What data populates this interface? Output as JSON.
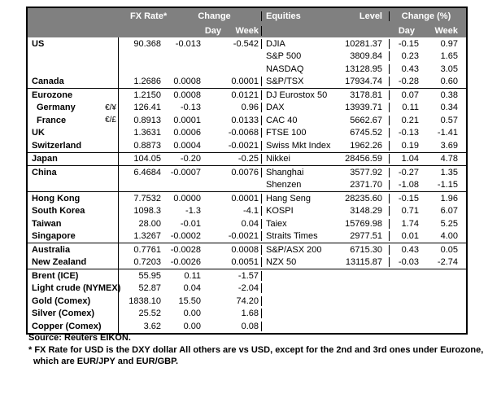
{
  "colors": {
    "header_bg": "#808080",
    "header_text": "#ffffff",
    "border": "#000000",
    "text": "#000000",
    "background": "#ffffff"
  },
  "header": {
    "fx_rate": "FX Rate*",
    "change": "Change",
    "day": "Day",
    "week": "Week",
    "equities": "Equities",
    "level": "Level",
    "change_pct": "Change (%)",
    "day2": "Day",
    "week2": "Week"
  },
  "rows": [
    {
      "name": "US",
      "pair": "",
      "fx": "90.368",
      "day": "-0.013",
      "week": "-0.542",
      "eq": "DJIA",
      "level": "10281.37",
      "eday": "-0.15",
      "eweek": "0.97",
      "sep": false,
      "indent": false,
      "rightEmpty": false
    },
    {
      "name": "",
      "pair": "",
      "fx": "",
      "day": "",
      "week": "",
      "eq": "S&P 500",
      "level": "3809.84",
      "eday": "0.23",
      "eweek": "1.65",
      "sep": false,
      "indent": false,
      "rightEmpty": false
    },
    {
      "name": "",
      "pair": "",
      "fx": "",
      "day": "",
      "week": "",
      "eq": "NASDAQ",
      "level": "13128.95",
      "eday": "0.43",
      "eweek": "3.05",
      "sep": false,
      "indent": false,
      "rightEmpty": false
    },
    {
      "name": "Canada",
      "pair": "",
      "fx": "1.2686",
      "day": "0.0008",
      "week": "0.0001",
      "eq": "S&P/TSX",
      "level": "17934.74",
      "eday": "-0.28",
      "eweek": "0.60",
      "sep": false,
      "indent": false,
      "rightEmpty": false
    },
    {
      "name": "Eurozone",
      "pair": "",
      "fx": "1.2150",
      "day": "0.0008",
      "week": "0.0121",
      "eq": "DJ Eurostox 50",
      "level": "3178.81",
      "eday": "0.07",
      "eweek": "0.38",
      "sep": true,
      "indent": false,
      "rightEmpty": false
    },
    {
      "name": "Germany",
      "pair": "€/¥",
      "fx": "126.41",
      "day": "-0.13",
      "week": "0.96",
      "eq": "DAX",
      "level": "13939.71",
      "eday": "0.11",
      "eweek": "0.34",
      "sep": false,
      "indent": true,
      "rightEmpty": false
    },
    {
      "name": "France",
      "pair": "€/£",
      "fx": "0.8913",
      "day": "0.0001",
      "week": "0.0133",
      "eq": "CAC 40",
      "level": "5662.67",
      "eday": "0.21",
      "eweek": "0.57",
      "sep": false,
      "indent": true,
      "rightEmpty": false
    },
    {
      "name": "UK",
      "pair": "",
      "fx": "1.3631",
      "day": "0.0006",
      "week": "-0.0068",
      "eq": "FTSE 100",
      "level": "6745.52",
      "eday": "-0.13",
      "eweek": "-1.41",
      "sep": false,
      "indent": false,
      "rightEmpty": false
    },
    {
      "name": "Switzerland",
      "pair": "",
      "fx": "0.8873",
      "day": "0.0004",
      "week": "-0.0021",
      "eq": "Swiss Mkt Index",
      "level": "1962.26",
      "eday": "0.19",
      "eweek": "3.69",
      "sep": false,
      "indent": false,
      "rightEmpty": false
    },
    {
      "name": "Japan",
      "pair": "",
      "fx": "104.05",
      "day": "-0.20",
      "week": "-0.25",
      "eq": "Nikkei",
      "level": "28456.59",
      "eday": "1.04",
      "eweek": "4.78",
      "sep": true,
      "indent": false,
      "rightEmpty": false
    },
    {
      "name": "China",
      "pair": "",
      "fx": "6.4684",
      "day": "-0.0007",
      "week": "0.0076",
      "eq": "Shanghai",
      "level": "3577.92",
      "eday": "-0.27",
      "eweek": "1.35",
      "sep": true,
      "indent": false,
      "rightEmpty": false
    },
    {
      "name": "",
      "pair": "",
      "fx": "",
      "day": "",
      "week": "",
      "eq": "Shenzen",
      "level": "2371.70",
      "eday": "-1.08",
      "eweek": "-1.15",
      "sep": false,
      "indent": false,
      "rightEmpty": false
    },
    {
      "name": "Hong Kong",
      "pair": "",
      "fx": "7.7532",
      "day": "0.0000",
      "week": "0.0001",
      "eq": "Hang Seng",
      "level": "28235.60",
      "eday": "-0.15",
      "eweek": "1.96",
      "sep": true,
      "indent": false,
      "rightEmpty": false
    },
    {
      "name": "South Korea",
      "pair": "",
      "fx": "1098.3",
      "day": "-1.3",
      "week": "-4.1",
      "eq": "KOSPI",
      "level": "3148.29",
      "eday": "0.71",
      "eweek": "6.07",
      "sep": false,
      "indent": false,
      "rightEmpty": false
    },
    {
      "name": "Taiwan",
      "pair": "",
      "fx": "28.00",
      "day": "-0.01",
      "week": "0.04",
      "eq": "Taiex",
      "level": "15769.98",
      "eday": "1.74",
      "eweek": "5.25",
      "sep": false,
      "indent": false,
      "rightEmpty": false
    },
    {
      "name": "Singapore",
      "pair": "",
      "fx": "1.3267",
      "day": "-0.0002",
      "week": "-0.0021",
      "eq": "Straits Times",
      "level": "2977.51",
      "eday": "0.01",
      "eweek": "4.00",
      "sep": false,
      "indent": false,
      "rightEmpty": false
    },
    {
      "name": "Australia",
      "pair": "",
      "fx": "0.7761",
      "day": "-0.0028",
      "week": "0.0008",
      "eq": "S&P/ASX 200",
      "level": "6715.30",
      "eday": "0.43",
      "eweek": "0.05",
      "sep": true,
      "indent": false,
      "rightEmpty": false
    },
    {
      "name": "New Zealand",
      "pair": "",
      "fx": "0.7203",
      "day": "-0.0026",
      "week": "0.0051",
      "eq": "NZX 50",
      "level": "13115.87",
      "eday": "-0.03",
      "eweek": "-2.74",
      "sep": false,
      "indent": false,
      "rightEmpty": false
    },
    {
      "name": "Brent (ICE)",
      "pair": "",
      "fx": "55.95",
      "day": "0.11",
      "week": "-1.57",
      "eq": "",
      "level": "",
      "eday": "",
      "eweek": "",
      "sep": true,
      "indent": false,
      "rightEmpty": true
    },
    {
      "name": "Light crude (NYMEX)",
      "pair": "",
      "fx": "52.87",
      "day": "0.04",
      "week": "-2.04",
      "eq": "",
      "level": "",
      "eday": "",
      "eweek": "",
      "sep": false,
      "indent": false,
      "rightEmpty": true
    },
    {
      "name": "Gold (Comex)",
      "pair": "",
      "fx": "1838.10",
      "day": "15.50",
      "week": "74.20",
      "eq": "",
      "level": "",
      "eday": "",
      "eweek": "",
      "sep": false,
      "indent": false,
      "rightEmpty": true
    },
    {
      "name": "Silver (Comex)",
      "pair": "",
      "fx": "25.52",
      "day": "0.00",
      "week": "1.68",
      "eq": "",
      "level": "",
      "eday": "",
      "eweek": "",
      "sep": false,
      "indent": false,
      "rightEmpty": true
    },
    {
      "name": "Copper (Comex)",
      "pair": "",
      "fx": "3.62",
      "day": "0.00",
      "week": "0.08",
      "eq": "",
      "level": "",
      "eday": "",
      "eweek": "",
      "sep": false,
      "indent": false,
      "rightEmpty": true
    }
  ],
  "footer": {
    "source": "Source:  Reuters EIKON.",
    "note1": "* FX Rate for USD is the DXY dollar  All others are vs USD, except for the 2nd and 3rd ones under Eurozone,",
    "note2": "which are EUR/JPY and EUR/GBP."
  }
}
